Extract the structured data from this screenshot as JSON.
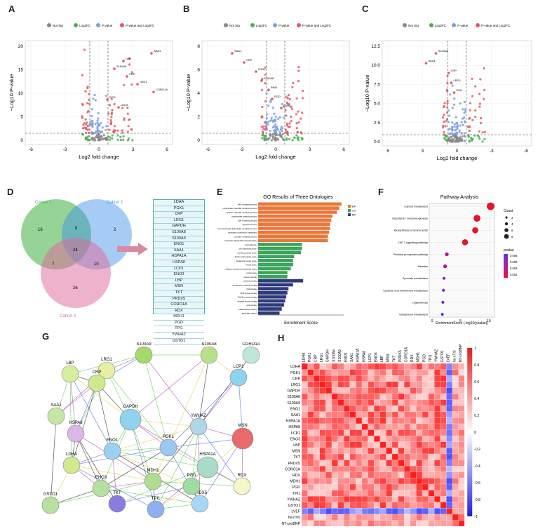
{
  "panels": {
    "A": "A",
    "B": "B",
    "C": "C",
    "D": "D",
    "E": "E",
    "F": "F",
    "G": "G",
    "H": "H"
  },
  "volcano": {
    "legend": [
      "Not Sig",
      "Log2FC",
      "P-value",
      "P-value and Log2FC"
    ],
    "legend_colors": [
      "#888888",
      "#4caf50",
      "#7b9fe0",
      "#e05a6b"
    ],
    "xlabel": "Log2 fold change",
    "ylabel": "−Log10 P-value",
    "A": {
      "xticks": [
        "-6",
        "-3",
        "0",
        "3",
        "6"
      ],
      "yticks": [
        "0",
        "5",
        "10",
        "15",
        "20"
      ],
      "genes": [
        "SAA1",
        "LBP",
        "S100A8",
        "CRP",
        "LRG1",
        "CORO1A",
        "PGD",
        "LDHA"
      ]
    },
    "B": {
      "xticks": [
        "-6",
        "-3",
        "0",
        "3",
        "6"
      ],
      "yticks": [
        "0",
        "2",
        "4",
        "6",
        "8"
      ],
      "genes": [
        "SAA1",
        "CRP",
        "LRG1",
        "S100A8",
        "PKM",
        "PGD",
        "LDHA"
      ]
    },
    "C": {
      "xticks": [
        "6",
        "3",
        "0",
        "-3",
        "-6"
      ],
      "yticks": [
        "0.0",
        "2.5",
        "5.0",
        "7.5",
        "10.0",
        "12.5"
      ],
      "genes": [
        "S100A8",
        "SAA1",
        "CRP",
        "LRG1",
        "PGD"
      ]
    }
  },
  "venn": {
    "sets": [
      "Cohort 1",
      "Cohort 2",
      "Cohort 3"
    ],
    "counts": [
      "16",
      "0",
      "2",
      "24",
      "7",
      "10",
      "26"
    ],
    "set_colors": [
      "#3fae3f",
      "#3a8ee8",
      "#e0669a"
    ]
  },
  "proteins": [
    "LDHA",
    "PGK1",
    "CRP",
    "LRG1",
    "GAPDH",
    "S100A8",
    "S100A9",
    "ENO1",
    "SAA1",
    "HSPA1A",
    "HSPA8",
    "LCP1",
    "ENO3",
    "LBP",
    "MSN",
    "TKT",
    "PRDX5",
    "CORO1A",
    "RDX",
    "MDH1",
    "PGD",
    "TPI1",
    "YWHAZ",
    "GSTO1"
  ],
  "go": {
    "title": "GO Results of Three Ontologies",
    "xlabel": "Enrichment Score",
    "legend": [
      "BP",
      "CC",
      "MF"
    ],
    "colors": [
      "#e9773a",
      "#3da35d",
      "#2f3a7a"
    ],
    "terms": [
      "NAD metabolic process",
      "nicotinamide nucleotide metabolic process",
      "pyridine nucleotide metabolic process",
      "carbohydrate catabolic process",
      "ADP metabolic process",
      "glycolytic process",
      "purine nucleoside diphosphate metabolic process",
      "generation of precursor metabolites",
      "pyruvate metabolic process",
      "nucleoside diphosphate phosphorylation",
      "focal adhesion",
      "cell-substrate junction",
      "secretory granule lumen",
      "ficolin-1-rich granule lumen",
      "cytoplasmic vesicle lumen",
      "vesicle lumen",
      "collagen-containing extracellular matrix",
      "melanosome",
      "pigment granule",
      "cadherin binding",
      "cell adhesion molecule binding",
      "NAD binding",
      "S100 protein binding",
      "RAGE receptor binding",
      "unfolded protein binding",
      "actin binding",
      "oxidoreductase activity",
      "antioxidant activity"
    ],
    "scores": [
      7.4,
      7.2,
      7.0,
      6.6,
      6.5,
      6.4,
      6.4,
      6.3,
      6.2,
      6.2,
      3.9,
      3.9,
      3.8,
      3.2,
      3.1,
      3.1,
      2.9,
      2.6,
      2.6,
      4.0,
      3.1,
      2.7,
      2.6,
      2.5,
      2.4,
      2.3,
      2.1,
      1.9
    ],
    "categories": [
      "BP",
      "BP",
      "BP",
      "BP",
      "BP",
      "BP",
      "BP",
      "BP",
      "BP",
      "BP",
      "CC",
      "CC",
      "CC",
      "CC",
      "CC",
      "CC",
      "CC",
      "CC",
      "CC",
      "MF",
      "MF",
      "MF",
      "MF",
      "MF",
      "MF",
      "MF",
      "MF",
      "MF"
    ]
  },
  "pathway": {
    "title": "Pathway Analysis",
    "xlabel": "EnrichmentScore (-log10(pvalue))",
    "count_label": "Count",
    "count_ticks": [
      "2",
      "4",
      "6",
      "8"
    ],
    "count_values": [
      2,
      4,
      6,
      8
    ],
    "pvalue_label": "pvalue",
    "pvalue_ticks": [
      "0.008",
      "0.006",
      "0.004",
      "0.002"
    ],
    "xticks": [
      "0",
      "5",
      "10"
    ],
    "chart_data": {
      "type": "scatter",
      "terms": [
        "Carbon metabolism",
        "Glycolysis / Gluconeogenesis",
        "Biosynthesis of amino acids",
        "HIF-1 signaling pathway",
        "Pentose phosphate pathway",
        "Measles",
        "Pyruvate metabolism",
        "Cysteine and methionine metabolism",
        "Legionellosis",
        "Glutathione metabolism"
      ],
      "scores": [
        10.3,
        7.9,
        7.6,
        5.8,
        2.6,
        2.3,
        2.1,
        2.0,
        1.9,
        1.8
      ],
      "counts": [
        8,
        7,
        6,
        6,
        3,
        3,
        2,
        2,
        2,
        2
      ],
      "pvalues": [
        0.0001,
        0.0002,
        0.0002,
        0.0003,
        0.004,
        0.005,
        0.007,
        0.008,
        0.008,
        0.009
      ]
    }
  },
  "network": {
    "nodes": [
      "S100A9",
      "S100A8",
      "CORO1A",
      "LCP1",
      "LRG1",
      "LBP",
      "CRP",
      "SAA1",
      "GSTO1",
      "HSPA8",
      "GAPDH",
      "YWHAZ",
      "MSN",
      "LDHA",
      "HSPA1A",
      "ENO1",
      "PGK1",
      "RDX",
      "PRDX5",
      "TPI1",
      "TKT",
      "ENO3",
      "MDH1",
      "PGD"
    ],
    "colors": [
      "#a6d96a",
      "#b8e08a",
      "#bde7d6",
      "#8fd3f0",
      "#e6f0a0",
      "#d7ef9c",
      "#cfe98e",
      "#c6e6a8",
      "#b9e0a0",
      "#d9b7e8",
      "#8fd3f0",
      "#b0d6e8",
      "#e86a6a",
      "#d0e88e",
      "#a8dcc8",
      "#9ad0f0",
      "#9ac8f0",
      "#f6f6c8",
      "#a6d8f6",
      "#8fb0f0",
      "#8a7be0",
      "#b5e0a0",
      "#b0dc90",
      "#9fdc9f"
    ]
  },
  "heatmap": {
    "rows": [
      "LDHA",
      "PGK1",
      "CRP",
      "LRG1",
      "GAPDH",
      "S100A8",
      "S100A9",
      "ENO1",
      "SAA1",
      "HSPA1A",
      "HSPA8",
      "LCP1",
      "ENO3",
      "LBP",
      "MSN",
      "TKT",
      "PRDX5",
      "CORO1A",
      "RDX",
      "MDH1",
      "PGD",
      "TPI1",
      "YWHAZ",
      "GSTO1",
      "LVEF",
      "hs-cTnI",
      "NT-proBNP"
    ],
    "scale_ticks": [
      "1",
      "0.8",
      "0.6",
      "0.4",
      "0.2",
      "0",
      "-0.2",
      "-0.4",
      "-0.6",
      "-0.8",
      "-1"
    ],
    "scale_values": [
      1,
      0.8,
      0.6,
      0.4,
      0.2,
      0,
      -0.2,
      -0.4,
      -0.6,
      -0.8,
      -1
    ]
  }
}
